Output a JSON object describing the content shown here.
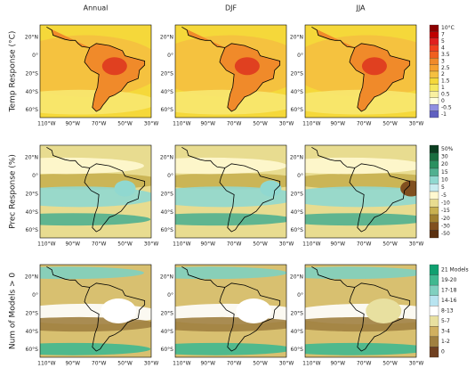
{
  "columns": [
    "Annual",
    "DJF",
    "JJA"
  ],
  "rows": [
    "Temp Response (°C)",
    "Prec Response (%)",
    "Num of Models > 0"
  ],
  "lat_ticks": [
    "20°N",
    "0°",
    "20°S",
    "40°S",
    "60°S"
  ],
  "lon_ticks": [
    "110°W",
    "90°W",
    "70°W",
    "50°W",
    "30°W"
  ],
  "colorbars": [
    {
      "labels": [
        "10°C",
        "7",
        "5",
        "4",
        "3.5",
        "3",
        "2.5",
        "2",
        "1.5",
        "1",
        "0.5",
        "0",
        "-0.5",
        "-1"
      ]
    },
    {
      "labels": [
        "50%",
        "30",
        "20",
        "15",
        "10",
        "5",
        "-5",
        "-10",
        "-15",
        "-20",
        "-30",
        "-50"
      ]
    },
    {
      "labels": [
        "21 Models",
        "19-20",
        "17-18",
        "14-16",
        "8-13",
        "5-7",
        "3-4",
        "1-2",
        "0"
      ]
    }
  ]
}
